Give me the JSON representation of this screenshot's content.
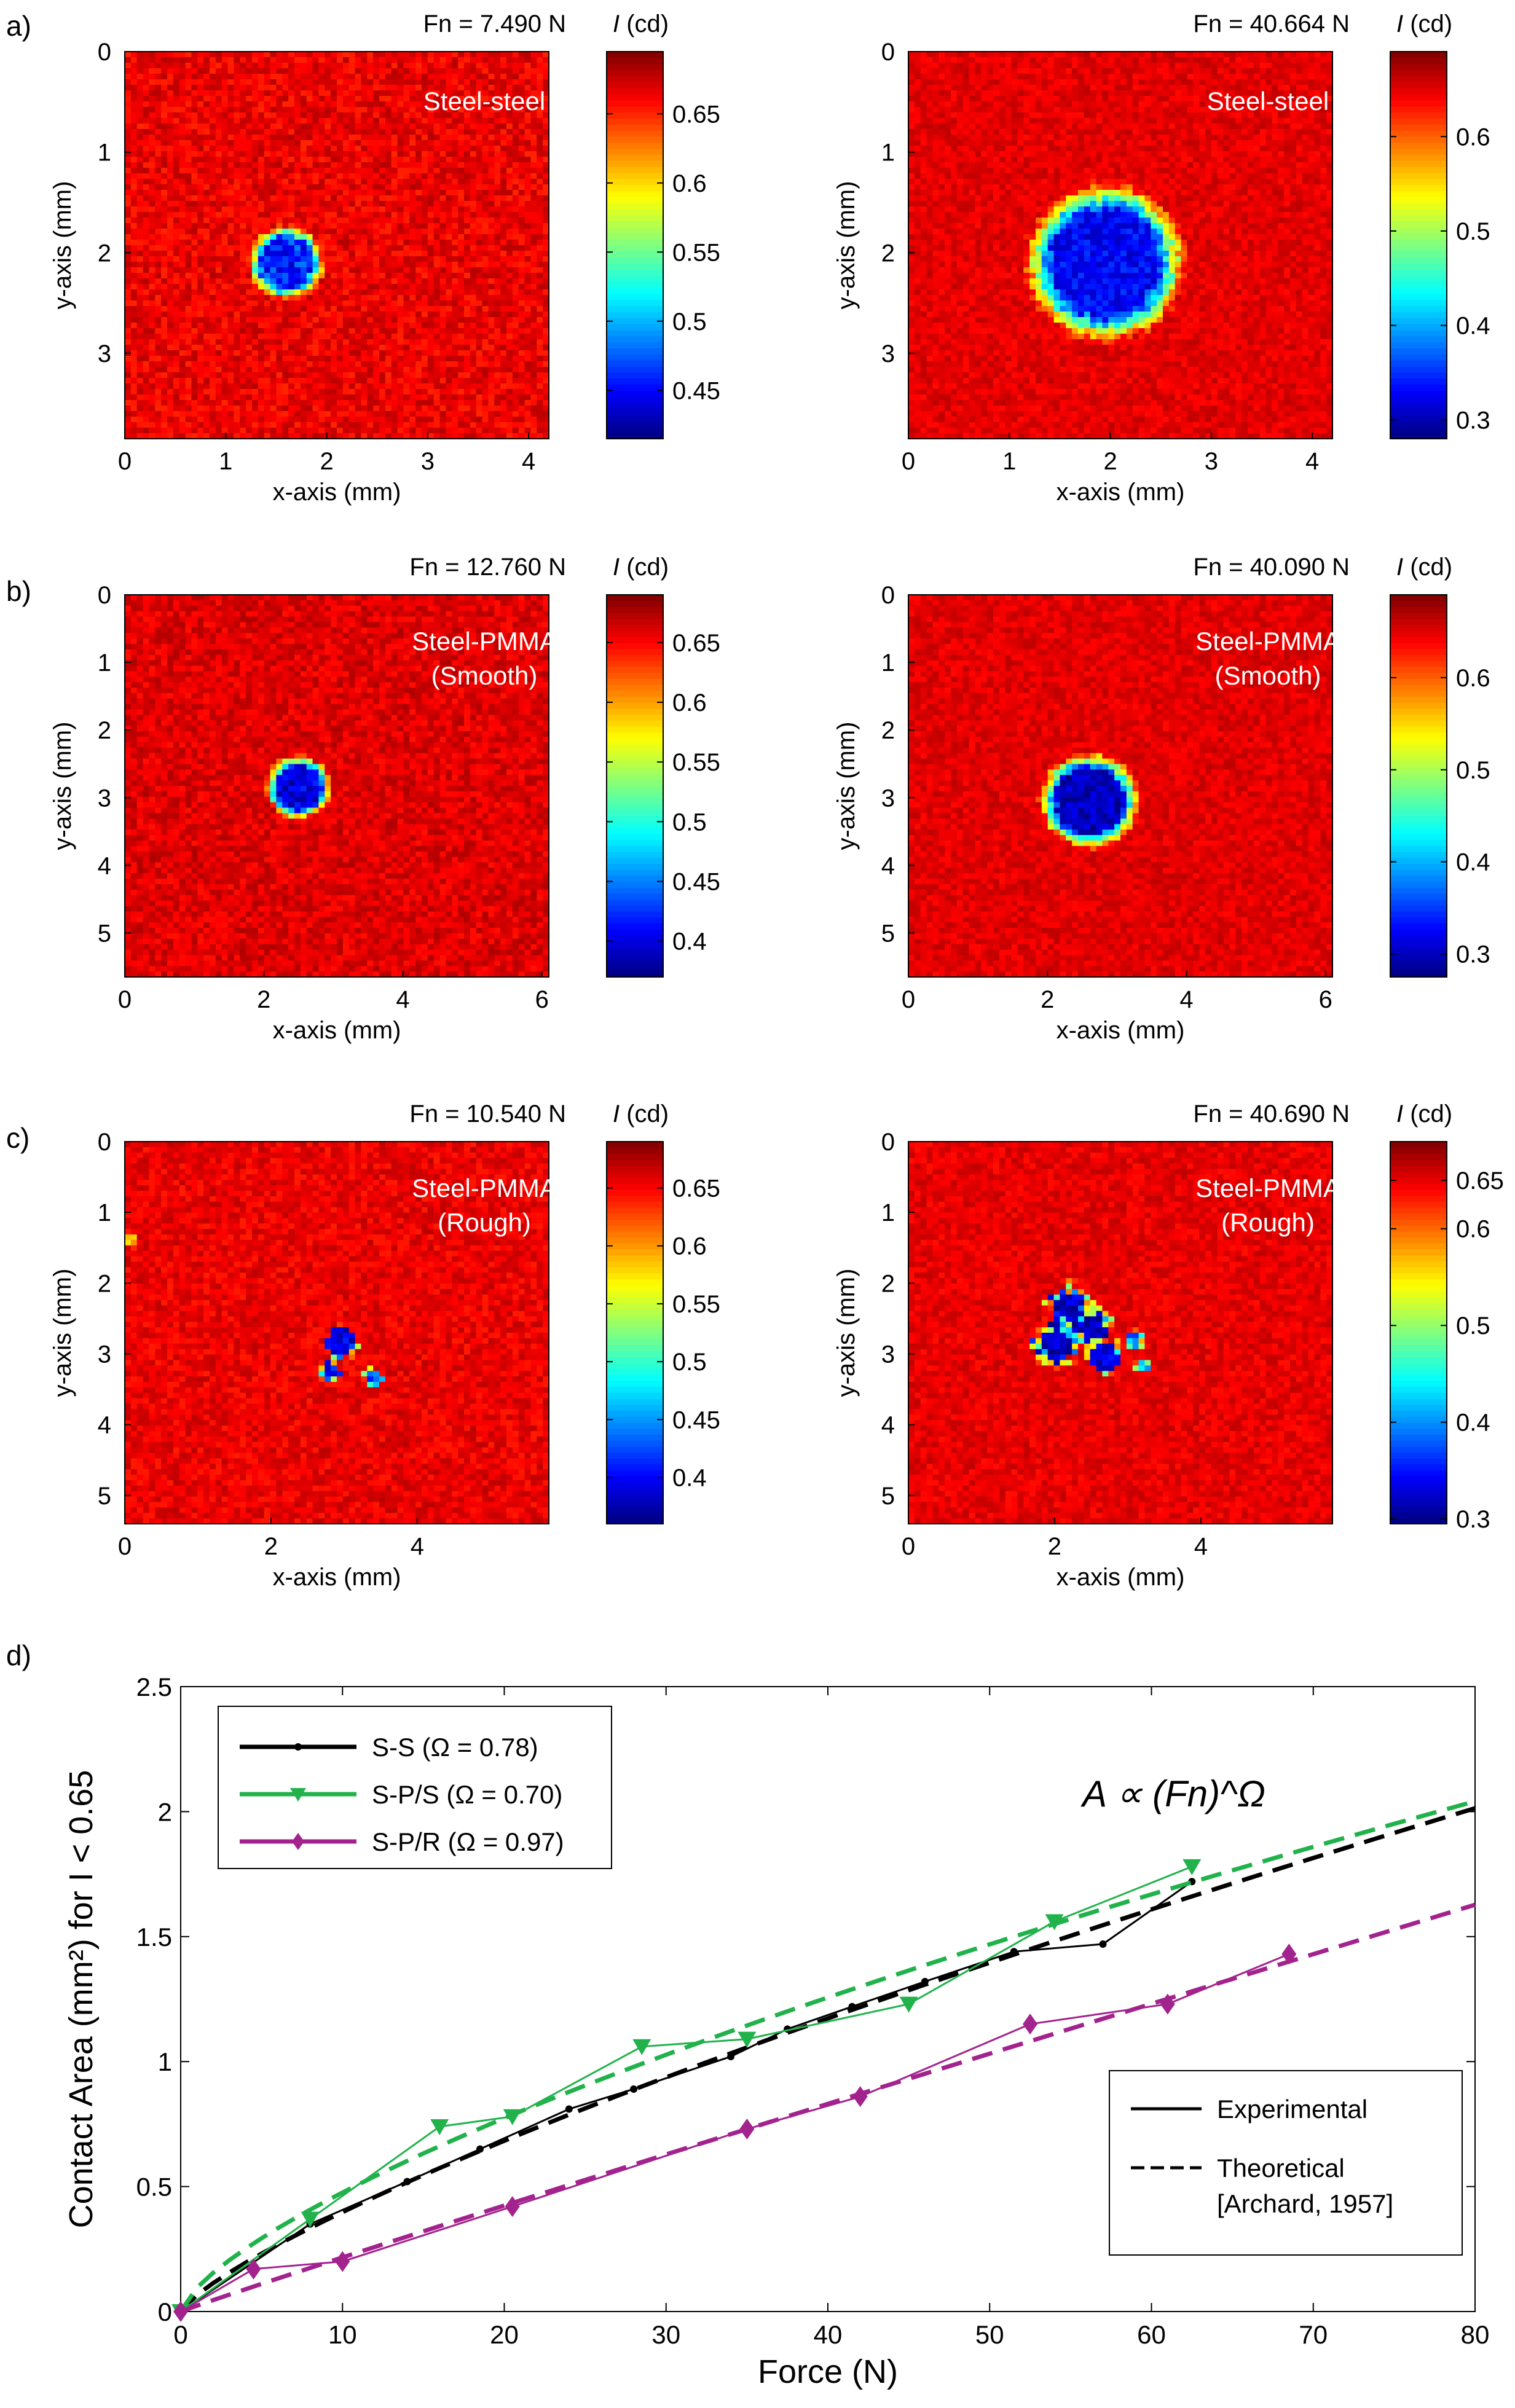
{
  "chart_data": [
    {
      "panel": "a)",
      "type": "heatmap",
      "title": "Fn = 7.490 N",
      "annotation": "Steel-steel",
      "xlabel": "x-axis (mm)",
      "ylabel": "y-axis (mm)",
      "xlim": [
        0,
        4.2
      ],
      "ylim": [
        0,
        3.85
      ],
      "xticks": [
        0,
        1,
        2,
        3,
        4
      ],
      "yticks": [
        0,
        1,
        2,
        3
      ],
      "colorbar": {
        "label": "I (cd)",
        "range": [
          0.415,
          0.695
        ],
        "ticks": [
          0.45,
          0.5,
          0.55,
          0.6,
          0.65
        ]
      },
      "spots": [
        {
          "cx": 1.6,
          "cy": 2.1,
          "r": 0.33,
          "core": 0.46,
          "kind": "smooth"
        }
      ],
      "background": 0.665
    },
    {
      "panel": "",
      "type": "heatmap",
      "title": "Fn = 40.664 N",
      "annotation": "Steel-steel",
      "xlabel": "x-axis (mm)",
      "ylabel": "y-axis (mm)",
      "xlim": [
        0,
        4.2
      ],
      "ylim": [
        0,
        3.85
      ],
      "xticks": [
        0,
        1,
        2,
        3,
        4
      ],
      "yticks": [
        0,
        1,
        2,
        3
      ],
      "colorbar": {
        "label": "I (cd)",
        "range": [
          0.28,
          0.69
        ],
        "ticks": [
          0.3,
          0.4,
          0.5,
          0.6
        ]
      },
      "spots": [
        {
          "cx": 1.95,
          "cy": 2.1,
          "r": 0.7,
          "core": 0.33,
          "kind": "smooth"
        }
      ],
      "background": 0.65
    },
    {
      "panel": "b)",
      "type": "heatmap",
      "title": "Fn = 12.760 N",
      "annotation": [
        "Steel-PMMA",
        "(Smooth)"
      ],
      "xlabel": "x-axis (mm)",
      "ylabel": "y-axis (mm)",
      "xlim": [
        0,
        6.1
      ],
      "ylim": [
        0,
        5.65
      ],
      "xticks": [
        0,
        2,
        4,
        6
      ],
      "yticks": [
        0,
        1,
        2,
        3,
        4,
        5
      ],
      "colorbar": {
        "label": "I (cd)",
        "range": [
          0.37,
          0.69
        ],
        "ticks": [
          0.4,
          0.45,
          0.5,
          0.55,
          0.6,
          0.65
        ]
      },
      "spots": [
        {
          "cx": 2.5,
          "cy": 2.85,
          "r": 0.42,
          "core": 0.4,
          "kind": "smooth"
        }
      ],
      "background": 0.66
    },
    {
      "panel": "",
      "type": "heatmap",
      "title": "Fn = 40.090 N",
      "annotation": [
        "Steel-PMMA",
        "(Smooth)"
      ],
      "xlabel": "x-axis (mm)",
      "ylabel": "y-axis (mm)",
      "xlim": [
        0,
        6.1
      ],
      "ylim": [
        0,
        5.65
      ],
      "xticks": [
        0,
        2,
        4,
        6
      ],
      "yticks": [
        0,
        1,
        2,
        3,
        4,
        5
      ],
      "colorbar": {
        "label": "I (cd)",
        "range": [
          0.275,
          0.69
        ],
        "ticks": [
          0.3,
          0.4,
          0.5,
          0.6
        ]
      },
      "spots": [
        {
          "cx": 2.6,
          "cy": 3.05,
          "r": 0.63,
          "core": 0.3,
          "kind": "smooth"
        }
      ],
      "background": 0.65
    },
    {
      "panel": "c)",
      "type": "heatmap",
      "title": "Fn = 10.540 N",
      "annotation": [
        "Steel-PMMA",
        "(Rough)"
      ],
      "xlabel": "x-axis (mm)",
      "ylabel": "y-axis (mm)",
      "xlim": [
        0,
        5.8
      ],
      "ylim": [
        0,
        5.4
      ],
      "xticks": [
        0,
        2,
        4
      ],
      "yticks": [
        0,
        1,
        2,
        3,
        4,
        5
      ],
      "colorbar": {
        "label": "I (cd)",
        "range": [
          0.36,
          0.69
        ],
        "ticks": [
          0.4,
          0.45,
          0.5,
          0.55,
          0.6,
          0.65
        ]
      },
      "spots": [
        {
          "cx": 2.95,
          "cy": 2.85,
          "r": 0.2,
          "core": 0.39,
          "kind": "rough"
        },
        {
          "cx": 2.8,
          "cy": 3.25,
          "r": 0.15,
          "core": 0.4,
          "kind": "rough"
        },
        {
          "cx": 3.4,
          "cy": 3.35,
          "r": 0.12,
          "core": 0.42,
          "kind": "rough"
        },
        {
          "cx": 0.05,
          "cy": 1.4,
          "r": 0.1,
          "core": 0.58,
          "kind": "rough"
        }
      ],
      "background": 0.655
    },
    {
      "panel": "",
      "type": "heatmap",
      "title": "Fn = 40.690 N",
      "annotation": [
        "Steel-PMMA",
        "(Rough)"
      ],
      "xlabel": "x-axis (mm)",
      "ylabel": "y-axis (mm)",
      "xlim": [
        0,
        5.8
      ],
      "ylim": [
        0,
        5.4
      ],
      "xticks": [
        0,
        2,
        4
      ],
      "yticks": [
        0,
        1,
        2,
        3,
        4,
        5
      ],
      "colorbar": {
        "label": "I (cd)",
        "range": [
          0.295,
          0.69
        ],
        "ticks": [
          0.3,
          0.4,
          0.5,
          0.6,
          0.65
        ]
      },
      "spots": [
        {
          "cx": 2.2,
          "cy": 2.35,
          "r": 0.28,
          "core": 0.32,
          "kind": "rough"
        },
        {
          "cx": 2.5,
          "cy": 2.6,
          "r": 0.25,
          "core": 0.32,
          "kind": "rough"
        },
        {
          "cx": 2.0,
          "cy": 2.85,
          "r": 0.28,
          "core": 0.32,
          "kind": "rough"
        },
        {
          "cx": 2.7,
          "cy": 3.05,
          "r": 0.22,
          "core": 0.33,
          "kind": "rough"
        },
        {
          "cx": 3.1,
          "cy": 2.8,
          "r": 0.12,
          "core": 0.38,
          "kind": "rough"
        },
        {
          "cx": 3.2,
          "cy": 3.15,
          "r": 0.1,
          "core": 0.42,
          "kind": "rough"
        }
      ],
      "background": 0.65
    },
    {
      "panel": "d)",
      "type": "line",
      "title": "",
      "xlabel": "Force (N)",
      "ylabel": "Contact Area (mm²) for I < 0.65",
      "xlim": [
        0,
        80
      ],
      "ylim": [
        0,
        2.5
      ],
      "xticks": [
        0,
        10,
        20,
        30,
        40,
        50,
        60,
        70,
        80
      ],
      "yticks": [
        0,
        0.5,
        1,
        1.5,
        2,
        2.5
      ],
      "formula": "A ∝ (Fn)^Ω",
      "series": [
        {
          "name": "S-S (Ω = 0.78)",
          "color": "#000000",
          "marker": "dot",
          "omega": 0.78,
          "coef": 0.066,
          "x": [
            0,
            8,
            14,
            18.5,
            24,
            28,
            34,
            37.5,
            41.5,
            46,
            51.5,
            57,
            62.5
          ],
          "y": [
            0,
            0.35,
            0.52,
            0.65,
            0.81,
            0.89,
            1.02,
            1.13,
            1.22,
            1.32,
            1.44,
            1.47,
            1.72
          ]
        },
        {
          "name": "S-P/S (Ω = 0.70)",
          "color": "#21b24b",
          "marker": "triangle-down",
          "omega": 0.7,
          "coef": 0.095,
          "x": [
            0,
            8,
            16,
            20.5,
            28.5,
            35,
            45,
            54,
            62.5
          ],
          "y": [
            0,
            0.37,
            0.74,
            0.78,
            1.06,
            1.09,
            1.23,
            1.56,
            1.78
          ]
        },
        {
          "name": "S-P/R (Ω = 0.97)",
          "color": "#a3238e",
          "marker": "diamond",
          "omega": 0.97,
          "coef": 0.0232,
          "x": [
            0,
            4.5,
            10,
            20.5,
            35,
            42,
            52.5,
            61,
            68.5
          ],
          "y": [
            0,
            0.17,
            0.2,
            0.42,
            0.73,
            0.86,
            1.15,
            1.23,
            1.43
          ]
        }
      ],
      "legend_style": [
        "Experimental",
        "Theoretical",
        "[Archard, 1957]"
      ]
    }
  ]
}
